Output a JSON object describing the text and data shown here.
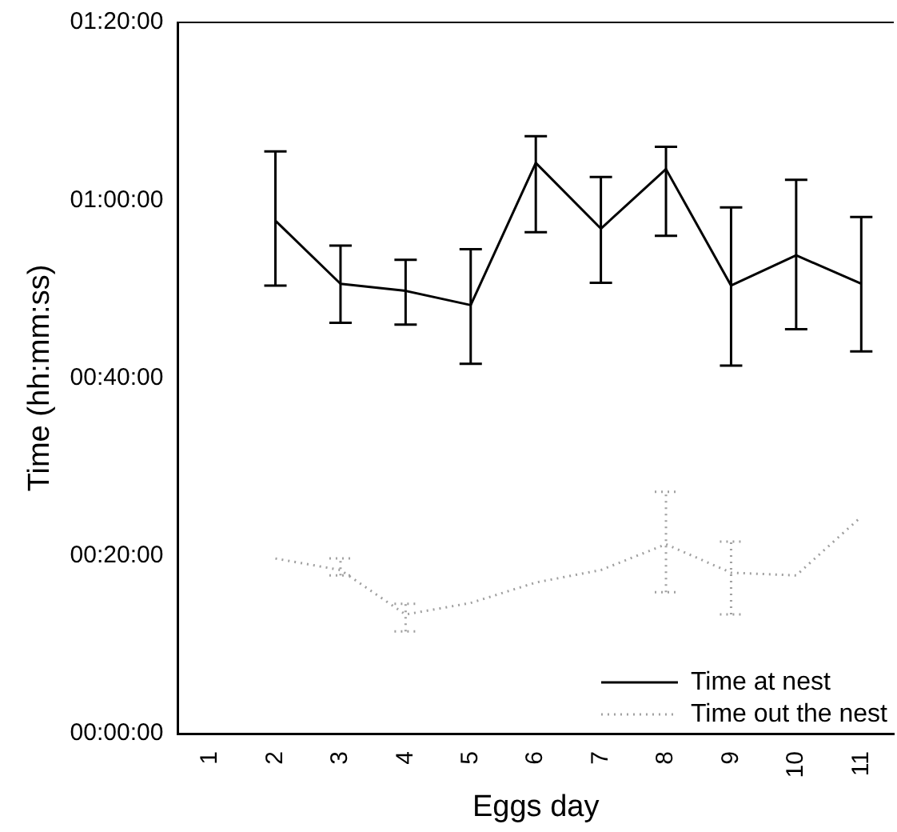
{
  "chart_data": {
    "type": "line",
    "xlabel": "Eggs day",
    "ylabel": "Time (hh:mm:ss)",
    "categories": [
      "1",
      "2",
      "3",
      "4",
      "5",
      "6",
      "7",
      "8",
      "9",
      "10",
      "11"
    ],
    "series": [
      {
        "name": "Time at nest",
        "color": "#000000",
        "line_style": "solid",
        "values": [
          null,
          57.7,
          50.6,
          49.8,
          48.2,
          64.2,
          56.8,
          63.5,
          50.4,
          53.8,
          50.6
        ],
        "errors": [
          null,
          [
            50.4,
            65.5
          ],
          [
            46.2,
            54.9
          ],
          [
            46.0,
            53.3
          ],
          [
            41.6,
            54.5
          ],
          [
            56.4,
            67.2
          ],
          [
            50.7,
            62.6
          ],
          [
            56.0,
            66.0
          ],
          [
            41.4,
            59.2
          ],
          [
            45.5,
            62.3
          ],
          [
            43.0,
            58.1
          ]
        ]
      },
      {
        "name": "Time out the nest",
        "color": "#a0a0a0",
        "line_style": "dotted",
        "values": [
          null,
          19.7,
          18.4,
          13.4,
          14.7,
          17.0,
          18.4,
          21.3,
          18.1,
          17.8,
          24.4
        ],
        "errors": [
          null,
          null,
          [
            17.8,
            19.7
          ],
          [
            11.5,
            14.6
          ],
          null,
          null,
          null,
          [
            15.9,
            27.2
          ],
          [
            13.4,
            21.6
          ],
          null,
          null
        ]
      }
    ],
    "ylim": [
      0,
      80
    ],
    "yticks": [
      {
        "value": 0,
        "label": "00:00:00"
      },
      {
        "value": 20,
        "label": "00:20:00"
      },
      {
        "value": 40,
        "label": "00:40:00"
      },
      {
        "value": 60,
        "label": "01:00:00"
      },
      {
        "value": 80,
        "label": "01:20:00"
      }
    ],
    "grid": false,
    "legend": "bottom right",
    "marker": "none"
  }
}
